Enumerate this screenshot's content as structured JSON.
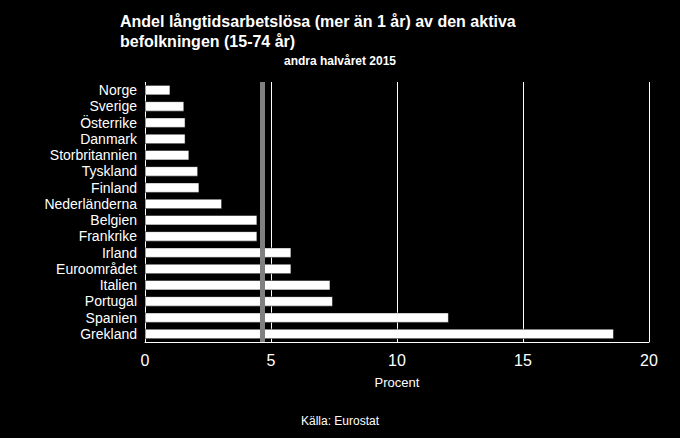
{
  "chart_data": {
    "type": "bar",
    "title": "Andel långtidsarbetslösa (mer än 1 år) av den aktiva befolkningen (15-74 år)",
    "subtitle": "andra halvåret 2015",
    "xlabel": "Procent",
    "source": "Källa: Eurostat",
    "orientation": "horizontal",
    "categories": [
      "Norge",
      "Sverige",
      "Österrike",
      "Danmark",
      "Storbritannien",
      "Tyskland",
      "Finland",
      "Nederländerna",
      "Belgien",
      "Frankrike",
      "Irland",
      "Euroområdet",
      "Italien",
      "Portugal",
      "Spanien",
      "Grekland"
    ],
    "values": [
      1.0,
      1.55,
      1.6,
      1.6,
      1.75,
      2.1,
      2.15,
      3.05,
      4.45,
      4.45,
      5.8,
      5.8,
      7.35,
      7.45,
      12.05,
      18.6
    ],
    "color": "#ffffff",
    "reference_line": 4.65,
    "xlim": [
      0,
      20
    ],
    "xticks": [
      0,
      5,
      10,
      15,
      20
    ],
    "grid": true
  }
}
